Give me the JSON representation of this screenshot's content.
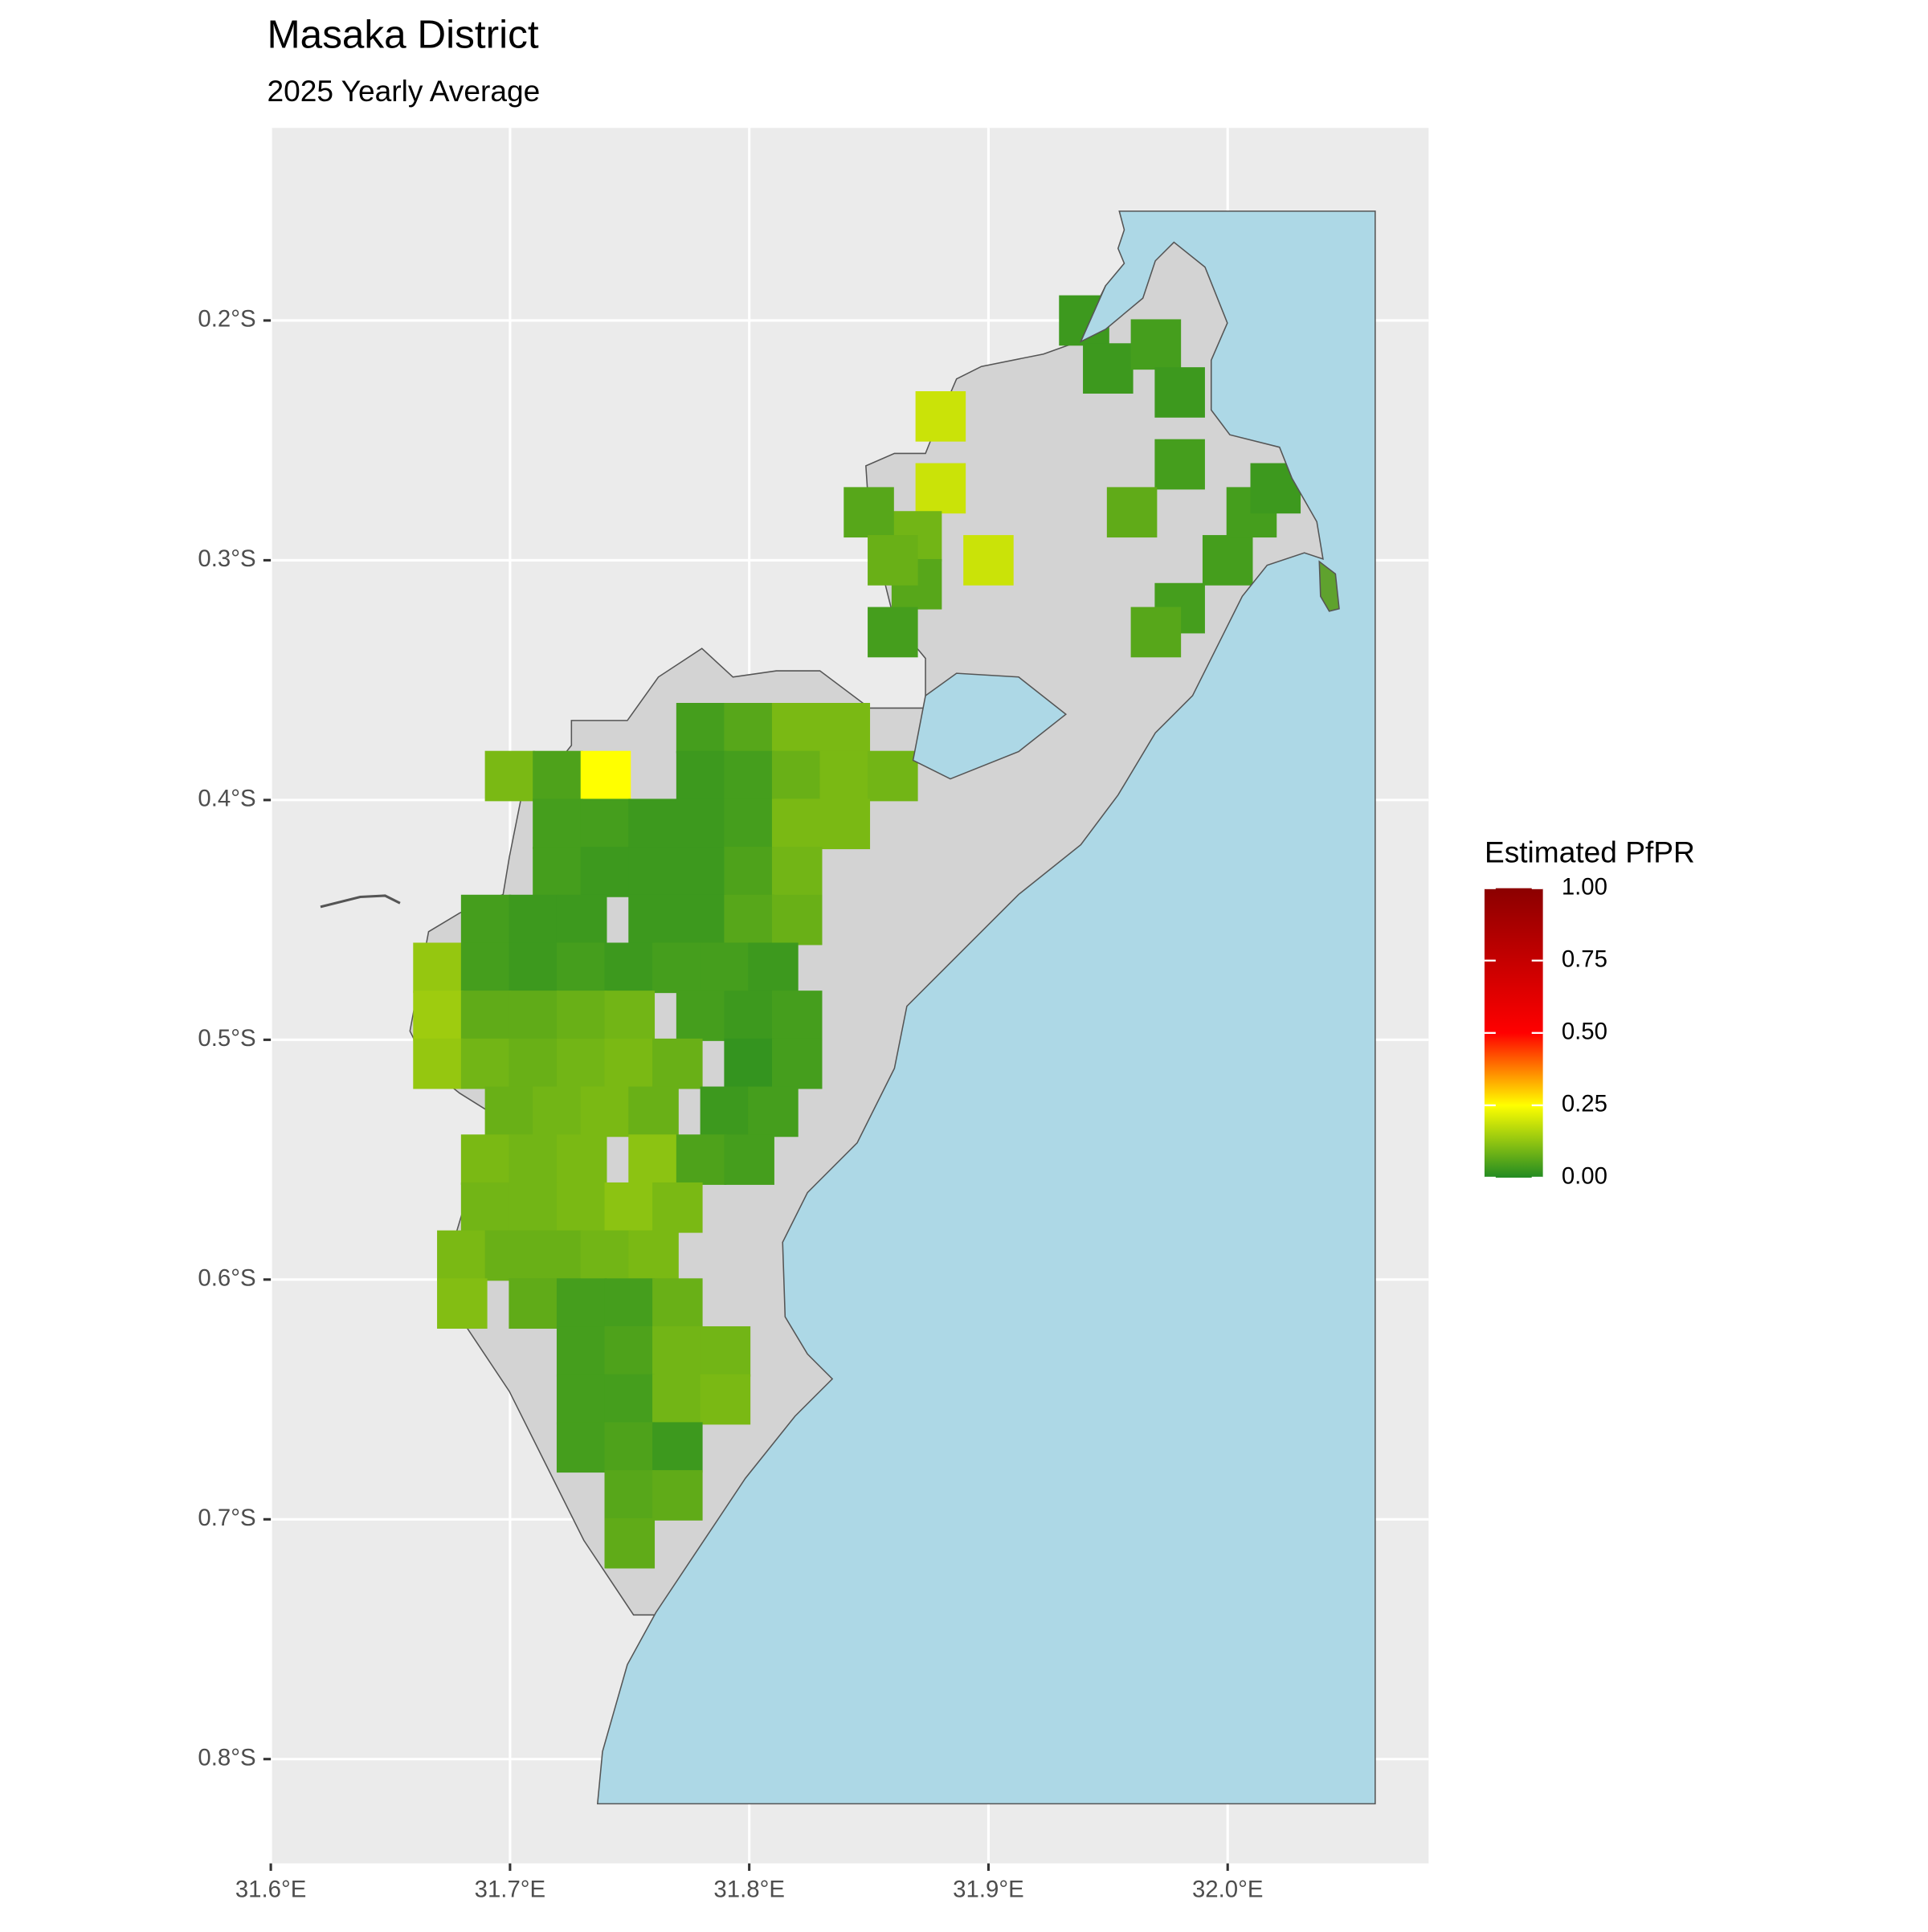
{
  "chart_data": {
    "type": "map",
    "title": "Masaka District",
    "subtitle": "2025 Yearly Average",
    "xlim": [
      31.6,
      32.084
    ],
    "ylim": [
      -0.8435,
      -0.1197
    ],
    "xticks": [
      {
        "value": 31.6,
        "label": "31.6°E"
      },
      {
        "value": 31.7,
        "label": "31.7°E"
      },
      {
        "value": 31.8,
        "label": "31.8°E"
      },
      {
        "value": 31.9,
        "label": "31.9°E"
      },
      {
        "value": 32.0,
        "label": "32.0°E"
      }
    ],
    "yticks": [
      {
        "value": -0.2,
        "label": "0.2°S"
      },
      {
        "value": -0.3,
        "label": "0.3°S"
      },
      {
        "value": -0.4,
        "label": "0.4°S"
      },
      {
        "value": -0.5,
        "label": "0.5°S"
      },
      {
        "value": -0.6,
        "label": "0.6°S"
      },
      {
        "value": -0.7,
        "label": "0.7°S"
      },
      {
        "value": -0.8,
        "label": "0.8°S"
      }
    ],
    "grid": true,
    "legend_title": "Estimated PfPR",
    "legend_ticks": [
      {
        "value": 0,
        "label": "0.00"
      },
      {
        "value": 0.25,
        "label": "0.25"
      },
      {
        "value": 0.5,
        "label": "0.50"
      },
      {
        "value": 0.75,
        "label": "0.75"
      },
      {
        "value": 1,
        "label": "1.00"
      }
    ],
    "colorscale": [
      {
        "value": 0,
        "color": "#228b22"
      },
      {
        "value": 0.25,
        "color": "#ffff00"
      },
      {
        "value": 0.5,
        "color": "#ff0000"
      },
      {
        "value": 1,
        "color": "#8b0000"
      }
    ],
    "cells": [
      {
        "lon": 31.88,
        "lat": -0.24,
        "value": 0.19
      },
      {
        "lon": 31.88,
        "lat": -0.27,
        "value": 0.19
      },
      {
        "lon": 31.9,
        "lat": -0.3,
        "value": 0.19
      },
      {
        "lon": 31.87,
        "lat": -0.29,
        "value": 0.09
      },
      {
        "lon": 31.87,
        "lat": -0.31,
        "value": 0.06
      },
      {
        "lon": 31.86,
        "lat": -0.33,
        "value": 0.04
      },
      {
        "lon": 31.85,
        "lat": -0.28,
        "value": 0.06
      },
      {
        "lon": 31.86,
        "lat": -0.3,
        "value": 0.08
      },
      {
        "lon": 31.94,
        "lat": -0.2,
        "value": 0.03
      },
      {
        "lon": 31.95,
        "lat": -0.22,
        "value": 0.03
      },
      {
        "lon": 31.97,
        "lat": -0.21,
        "value": 0.04
      },
      {
        "lon": 31.98,
        "lat": -0.23,
        "value": 0.03
      },
      {
        "lon": 31.98,
        "lat": -0.26,
        "value": 0.04
      },
      {
        "lon": 31.96,
        "lat": -0.28,
        "value": 0.07
      },
      {
        "lon": 31.98,
        "lat": -0.32,
        "value": 0.04
      },
      {
        "lon": 32.0,
        "lat": -0.3,
        "value": 0.04
      },
      {
        "lon": 32.01,
        "lat": -0.28,
        "value": 0.04
      },
      {
        "lon": 32.02,
        "lat": -0.27,
        "value": 0.03
      },
      {
        "lon": 31.97,
        "lat": -0.33,
        "value": 0.06
      },
      {
        "lon": 31.78,
        "lat": -0.37,
        "value": 0.04
      },
      {
        "lon": 31.8,
        "lat": -0.37,
        "value": 0.06
      },
      {
        "lon": 31.82,
        "lat": -0.37,
        "value": 0.1
      },
      {
        "lon": 31.84,
        "lat": -0.37,
        "value": 0.1
      },
      {
        "lon": 31.7,
        "lat": -0.39,
        "value": 0.1
      },
      {
        "lon": 31.72,
        "lat": -0.39,
        "value": 0.05
      },
      {
        "lon": 31.74,
        "lat": -0.39,
        "value": 0.25
      },
      {
        "lon": 31.78,
        "lat": -0.39,
        "value": 0.03
      },
      {
        "lon": 31.8,
        "lat": -0.39,
        "value": 0.04
      },
      {
        "lon": 31.82,
        "lat": -0.39,
        "value": 0.08
      },
      {
        "lon": 31.84,
        "lat": -0.39,
        "value": 0.1
      },
      {
        "lon": 31.86,
        "lat": -0.39,
        "value": 0.09
      },
      {
        "lon": 31.72,
        "lat": -0.41,
        "value": 0.04
      },
      {
        "lon": 31.74,
        "lat": -0.41,
        "value": 0.04
      },
      {
        "lon": 31.76,
        "lat": -0.41,
        "value": 0.03
      },
      {
        "lon": 31.78,
        "lat": -0.41,
        "value": 0.03
      },
      {
        "lon": 31.8,
        "lat": -0.41,
        "value": 0.04
      },
      {
        "lon": 31.82,
        "lat": -0.41,
        "value": 0.1
      },
      {
        "lon": 31.84,
        "lat": -0.41,
        "value": 0.1
      },
      {
        "lon": 31.72,
        "lat": -0.43,
        "value": 0.04
      },
      {
        "lon": 31.74,
        "lat": -0.43,
        "value": 0.03
      },
      {
        "lon": 31.76,
        "lat": -0.43,
        "value": 0.03
      },
      {
        "lon": 31.78,
        "lat": -0.43,
        "value": 0.03
      },
      {
        "lon": 31.8,
        "lat": -0.43,
        "value": 0.05
      },
      {
        "lon": 31.82,
        "lat": -0.43,
        "value": 0.09
      },
      {
        "lon": 31.69,
        "lat": -0.45,
        "value": 0.04
      },
      {
        "lon": 31.71,
        "lat": -0.45,
        "value": 0.03
      },
      {
        "lon": 31.73,
        "lat": -0.45,
        "value": 0.03
      },
      {
        "lon": 31.76,
        "lat": -0.45,
        "value": 0.03
      },
      {
        "lon": 31.78,
        "lat": -0.45,
        "value": 0.03
      },
      {
        "lon": 31.8,
        "lat": -0.45,
        "value": 0.06
      },
      {
        "lon": 31.82,
        "lat": -0.45,
        "value": 0.08
      },
      {
        "lon": 31.67,
        "lat": -0.47,
        "value": 0.13
      },
      {
        "lon": 31.69,
        "lat": -0.47,
        "value": 0.04
      },
      {
        "lon": 31.71,
        "lat": -0.47,
        "value": 0.03
      },
      {
        "lon": 31.73,
        "lat": -0.47,
        "value": 0.04
      },
      {
        "lon": 31.75,
        "lat": -0.47,
        "value": 0.03
      },
      {
        "lon": 31.77,
        "lat": -0.47,
        "value": 0.04
      },
      {
        "lon": 31.79,
        "lat": -0.47,
        "value": 0.04
      },
      {
        "lon": 31.81,
        "lat": -0.47,
        "value": 0.03
      },
      {
        "lon": 31.67,
        "lat": -0.49,
        "value": 0.14
      },
      {
        "lon": 31.69,
        "lat": -0.49,
        "value": 0.07
      },
      {
        "lon": 31.71,
        "lat": -0.49,
        "value": 0.07
      },
      {
        "lon": 31.73,
        "lat": -0.49,
        "value": 0.08
      },
      {
        "lon": 31.75,
        "lat": -0.49,
        "value": 0.09
      },
      {
        "lon": 31.78,
        "lat": -0.49,
        "value": 0.04
      },
      {
        "lon": 31.8,
        "lat": -0.49,
        "value": 0.03
      },
      {
        "lon": 31.82,
        "lat": -0.49,
        "value": 0.04
      },
      {
        "lon": 31.67,
        "lat": -0.51,
        "value": 0.13
      },
      {
        "lon": 31.69,
        "lat": -0.51,
        "value": 0.09
      },
      {
        "lon": 31.71,
        "lat": -0.51,
        "value": 0.08
      },
      {
        "lon": 31.73,
        "lat": -0.51,
        "value": 0.09
      },
      {
        "lon": 31.75,
        "lat": -0.51,
        "value": 0.1
      },
      {
        "lon": 31.77,
        "lat": -0.51,
        "value": 0.08
      },
      {
        "lon": 31.8,
        "lat": -0.51,
        "value": 0.02
      },
      {
        "lon": 31.82,
        "lat": -0.51,
        "value": 0.04
      },
      {
        "lon": 31.7,
        "lat": -0.53,
        "value": 0.08
      },
      {
        "lon": 31.72,
        "lat": -0.53,
        "value": 0.09
      },
      {
        "lon": 31.74,
        "lat": -0.53,
        "value": 0.1
      },
      {
        "lon": 31.76,
        "lat": -0.53,
        "value": 0.08
      },
      {
        "lon": 31.79,
        "lat": -0.53,
        "value": 0.03
      },
      {
        "lon": 31.81,
        "lat": -0.53,
        "value": 0.04
      },
      {
        "lon": 31.69,
        "lat": -0.55,
        "value": 0.1
      },
      {
        "lon": 31.71,
        "lat": -0.55,
        "value": 0.09
      },
      {
        "lon": 31.73,
        "lat": -0.55,
        "value": 0.1
      },
      {
        "lon": 31.76,
        "lat": -0.55,
        "value": 0.12
      },
      {
        "lon": 31.78,
        "lat": -0.55,
        "value": 0.05
      },
      {
        "lon": 31.8,
        "lat": -0.55,
        "value": 0.04
      },
      {
        "lon": 31.69,
        "lat": -0.57,
        "value": 0.09
      },
      {
        "lon": 31.71,
        "lat": -0.57,
        "value": 0.09
      },
      {
        "lon": 31.73,
        "lat": -0.57,
        "value": 0.1
      },
      {
        "lon": 31.75,
        "lat": -0.57,
        "value": 0.12
      },
      {
        "lon": 31.77,
        "lat": -0.57,
        "value": 0.1
      },
      {
        "lon": 31.68,
        "lat": -0.59,
        "value": 0.1
      },
      {
        "lon": 31.7,
        "lat": -0.59,
        "value": 0.08
      },
      {
        "lon": 31.72,
        "lat": -0.59,
        "value": 0.08
      },
      {
        "lon": 31.74,
        "lat": -0.59,
        "value": 0.09
      },
      {
        "lon": 31.76,
        "lat": -0.59,
        "value": 0.1
      },
      {
        "lon": 31.68,
        "lat": -0.61,
        "value": 0.11
      },
      {
        "lon": 31.71,
        "lat": -0.61,
        "value": 0.07
      },
      {
        "lon": 31.73,
        "lat": -0.61,
        "value": 0.04
      },
      {
        "lon": 31.75,
        "lat": -0.61,
        "value": 0.04
      },
      {
        "lon": 31.77,
        "lat": -0.61,
        "value": 0.08
      },
      {
        "lon": 31.73,
        "lat": -0.63,
        "value": 0.04
      },
      {
        "lon": 31.75,
        "lat": -0.63,
        "value": 0.05
      },
      {
        "lon": 31.77,
        "lat": -0.63,
        "value": 0.09
      },
      {
        "lon": 31.79,
        "lat": -0.63,
        "value": 0.09
      },
      {
        "lon": 31.73,
        "lat": -0.65,
        "value": 0.04
      },
      {
        "lon": 31.75,
        "lat": -0.65,
        "value": 0.04
      },
      {
        "lon": 31.77,
        "lat": -0.65,
        "value": 0.09
      },
      {
        "lon": 31.79,
        "lat": -0.65,
        "value": 0.1
      },
      {
        "lon": 31.73,
        "lat": -0.67,
        "value": 0.04
      },
      {
        "lon": 31.75,
        "lat": -0.67,
        "value": 0.05
      },
      {
        "lon": 31.77,
        "lat": -0.67,
        "value": 0.03
      },
      {
        "lon": 31.75,
        "lat": -0.69,
        "value": 0.06
      },
      {
        "lon": 31.77,
        "lat": -0.69,
        "value": 0.07
      },
      {
        "lon": 31.75,
        "lat": -0.71,
        "value": 0.07
      }
    ]
  }
}
